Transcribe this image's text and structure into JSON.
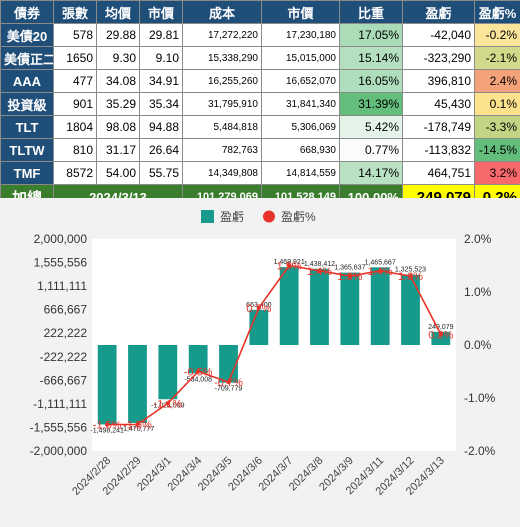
{
  "table": {
    "headers": [
      "債券",
      "張數",
      "均價",
      "市價",
      "成本",
      "市價",
      "比重",
      "盈虧",
      "盈虧%"
    ],
    "rows": [
      {
        "name": "美債20",
        "qty": "578",
        "avg": "29.88",
        "price": "29.81",
        "cost": "17,272,220",
        "value": "17,230,180",
        "weight": "17.05%",
        "pnl": "-42,040",
        "pct": "-0.2%",
        "weight_level": 0.5432,
        "pct_color": "#fbe59a"
      },
      {
        "name": "美債正二",
        "qty": "1650",
        "avg": "9.30",
        "price": "9.10",
        "cost": "15,338,290",
        "value": "15,015,000",
        "weight": "15.14%",
        "pnl": "-323,290",
        "pct": "-2.1%",
        "weight_level": 0.4823,
        "pct_color": "#d3d98a"
      },
      {
        "name": "AAA",
        "qty": "477",
        "avg": "34.08",
        "price": "34.91",
        "cost": "16,255,260",
        "value": "16,652,070",
        "weight": "16.05%",
        "pnl": "396,810",
        "pct": "2.4%",
        "weight_level": 0.5113,
        "pct_color": "#f4a27a"
      },
      {
        "name": "投資級",
        "qty": "901",
        "avg": "35.29",
        "price": "35.34",
        "cost": "31,795,910",
        "value": "31,841,340",
        "weight": "31.39%",
        "pnl": "45,430",
        "pct": "0.1%",
        "weight_level": 1.0,
        "pct_color": "#fde28e"
      },
      {
        "name": "TLT",
        "qty": "1804",
        "avg": "98.08",
        "price": "94.88",
        "cost": "5,484,818",
        "value": "5,306,069",
        "weight": "5.42%",
        "pnl": "-178,749",
        "pct": "-3.3%",
        "weight_level": 0.1727,
        "pct_color": "#c2d585"
      },
      {
        "name": "TLTW",
        "qty": "810",
        "avg": "31.17",
        "price": "26.64",
        "cost": "782,763",
        "value": "668,930",
        "weight": "0.77%",
        "pnl": "-113,832",
        "pct": "-14.5%",
        "weight_level": 0.0245,
        "pct_color": "#63be7b"
      },
      {
        "name": "TMF",
        "qty": "8572",
        "avg": "54.00",
        "price": "55.75",
        "cost": "14,349,808",
        "value": "14,814,559",
        "weight": "14.17%",
        "pnl": "464,751",
        "pct": "3.2%",
        "weight_level": 0.4514,
        "pct_color": "#f8696b"
      }
    ],
    "total": {
      "label": "加總",
      "date": "2024/3/13",
      "cost": "101,279,069",
      "value": "101,528,149",
      "weight": "100.00%",
      "pnl": "249,079",
      "pct": "0.2%"
    }
  },
  "colors": {
    "header_bg": "#1f4e79",
    "total_bg": "#3a7d2c",
    "highlight": "#ffff00",
    "bar": "#159a8c",
    "line": "#e8332a",
    "weight_scale_low": "#ffffff",
    "weight_scale_high": "#63be7b"
  },
  "chart_data": {
    "type": "bar",
    "categories": [
      "2024/2/28",
      "2024/2/29",
      "2024/3/1",
      "2024/3/4",
      "2024/3/5",
      "2024/3/6",
      "2024/3/7",
      "2024/3/8",
      "2024/3/9",
      "2024/3/11",
      "2024/3/12",
      "2024/3/13"
    ],
    "series": [
      {
        "name": "盈虧",
        "type": "bar",
        "axis": "left",
        "values": [
          -1498241,
          -1470777,
          -1024009,
          -534008,
          -709779,
          663400,
          1469921,
          1438412,
          1365637,
          1465667,
          1325523,
          249079
        ],
        "labels": [
          "-1,498,241",
          "-1,470,777",
          "-1,024,009",
          "-534,008",
          "-709,779",
          "663,400",
          "1,469,921",
          "1,438,412",
          "1,365,637",
          "1,465,667",
          "1,325,523",
          "249,079"
        ]
      },
      {
        "name": "盈虧%",
        "type": "line",
        "axis": "right",
        "values": [
          -1.5,
          -1.5,
          -1.1,
          -0.5,
          -0.7,
          0.7,
          1.5,
          1.4,
          1.3,
          1.4,
          1.3,
          0.2
        ],
        "labels": [
          "-1.5%",
          "-1.5%",
          "-1.1%",
          "-0.5%",
          "-0.7%",
          "0.7%",
          "1.5%",
          "1.4%",
          "1.3%",
          "1.4%",
          "1.3%",
          "0.2%"
        ]
      }
    ],
    "y_left": {
      "min": -2000000,
      "max": 2000000,
      "ticks": [
        -2000000,
        -1555556,
        -1111111,
        -666667,
        -222222,
        222222,
        666667,
        1111111,
        1555556,
        2000000
      ],
      "tick_labels": [
        "-2,000,000",
        "-1,555,556",
        "-1,111,111",
        "-666,667",
        "-222,222",
        "222,222",
        "666,667",
        "1,111,111",
        "1,555,556",
        "2,000,000"
      ]
    },
    "y_right": {
      "min": -2.0,
      "max": 2.0,
      "ticks": [
        -2.0,
        -1.0,
        0.0,
        1.0,
        2.0
      ],
      "tick_labels": [
        "-2.0%",
        "-1.0%",
        "0.0%",
        "1.0%",
        "2.0%"
      ]
    },
    "legend_position": "top-center",
    "grid": false
  }
}
